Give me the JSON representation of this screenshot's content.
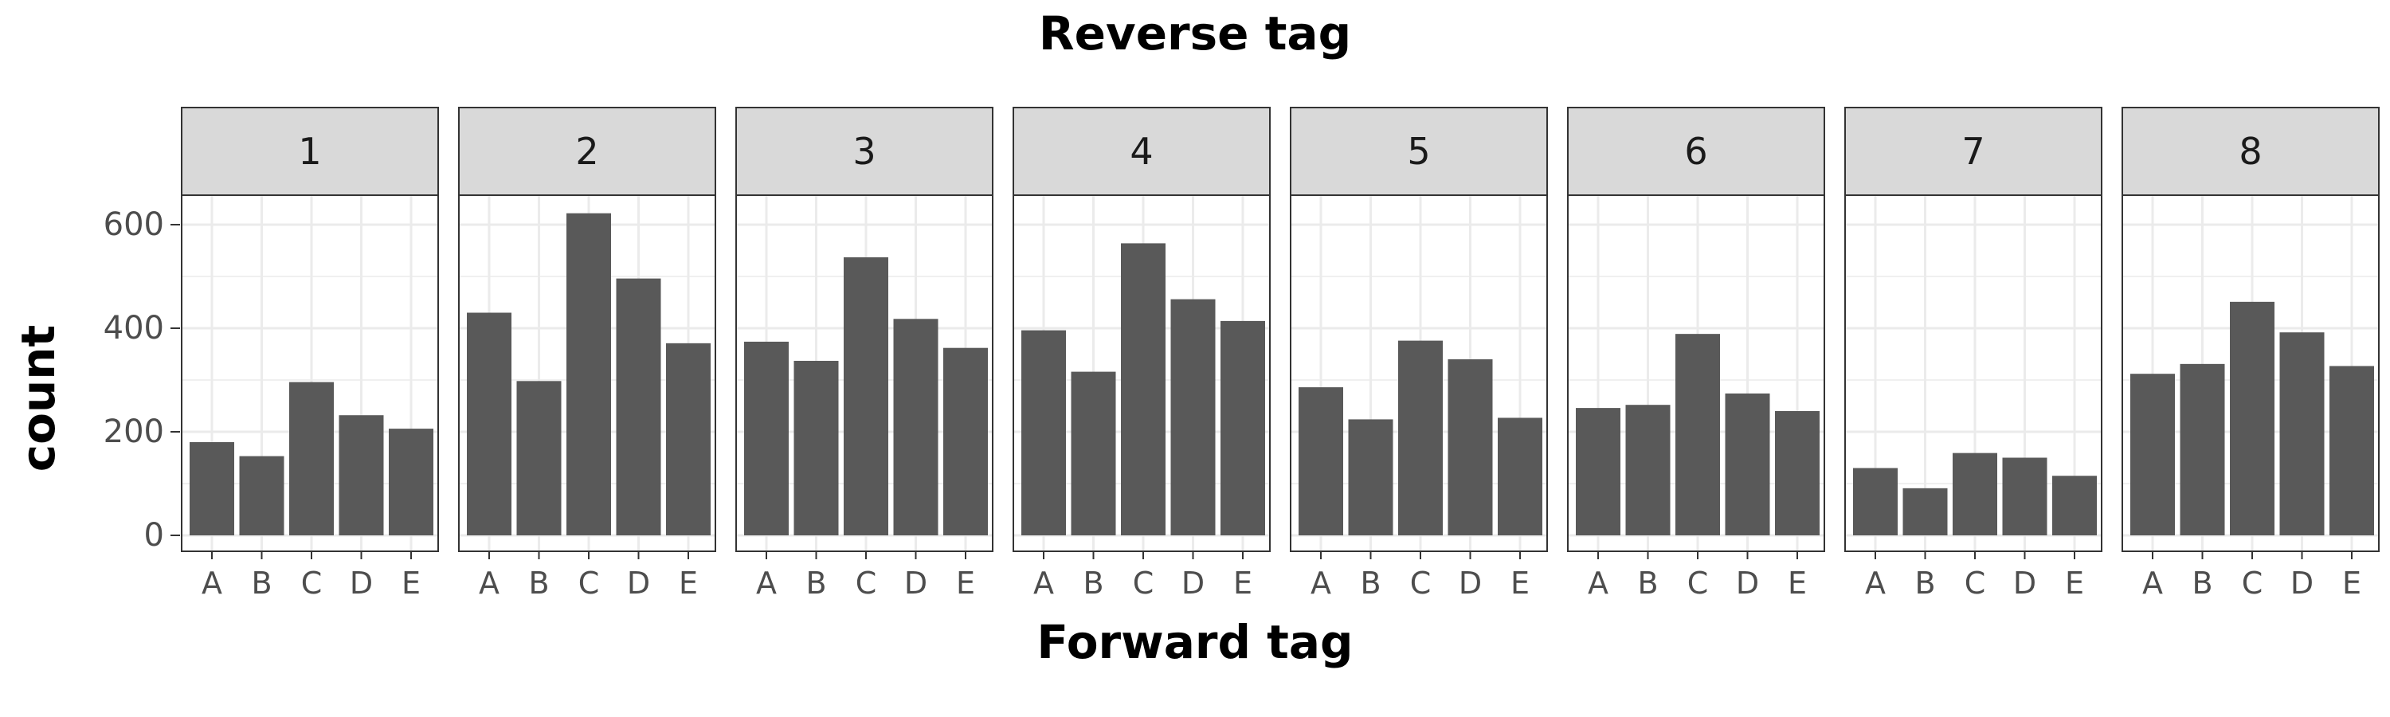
{
  "chart_data": {
    "type": "bar",
    "facet_title": "Reverse tag",
    "xlabel": "Forward tag",
    "ylabel": "count",
    "categories": [
      "A",
      "B",
      "C",
      "D",
      "E"
    ],
    "ylim": [
      0,
      650
    ],
    "yticks": [
      0,
      200,
      400,
      600
    ],
    "grid": true,
    "panels": [
      {
        "label": "1",
        "values": [
          180,
          153,
          296,
          232,
          206
        ]
      },
      {
        "label": "2",
        "values": [
          430,
          298,
          622,
          496,
          371
        ]
      },
      {
        "label": "3",
        "values": [
          374,
          337,
          537,
          418,
          362
        ]
      },
      {
        "label": "4",
        "values": [
          396,
          316,
          564,
          456,
          414
        ]
      },
      {
        "label": "5",
        "values": [
          286,
          224,
          376,
          340,
          227
        ]
      },
      {
        "label": "6",
        "values": [
          246,
          252,
          389,
          274,
          240
        ]
      },
      {
        "label": "7",
        "values": [
          130,
          91,
          159,
          150,
          115
        ]
      },
      {
        "label": "8",
        "values": [
          312,
          331,
          451,
          392,
          327
        ]
      }
    ],
    "colors": {
      "bar": "#595959",
      "strip": "#d9d9d9",
      "grid": "#ebebeb",
      "border": "#333333",
      "tick_label": "#4d4d4d"
    }
  }
}
